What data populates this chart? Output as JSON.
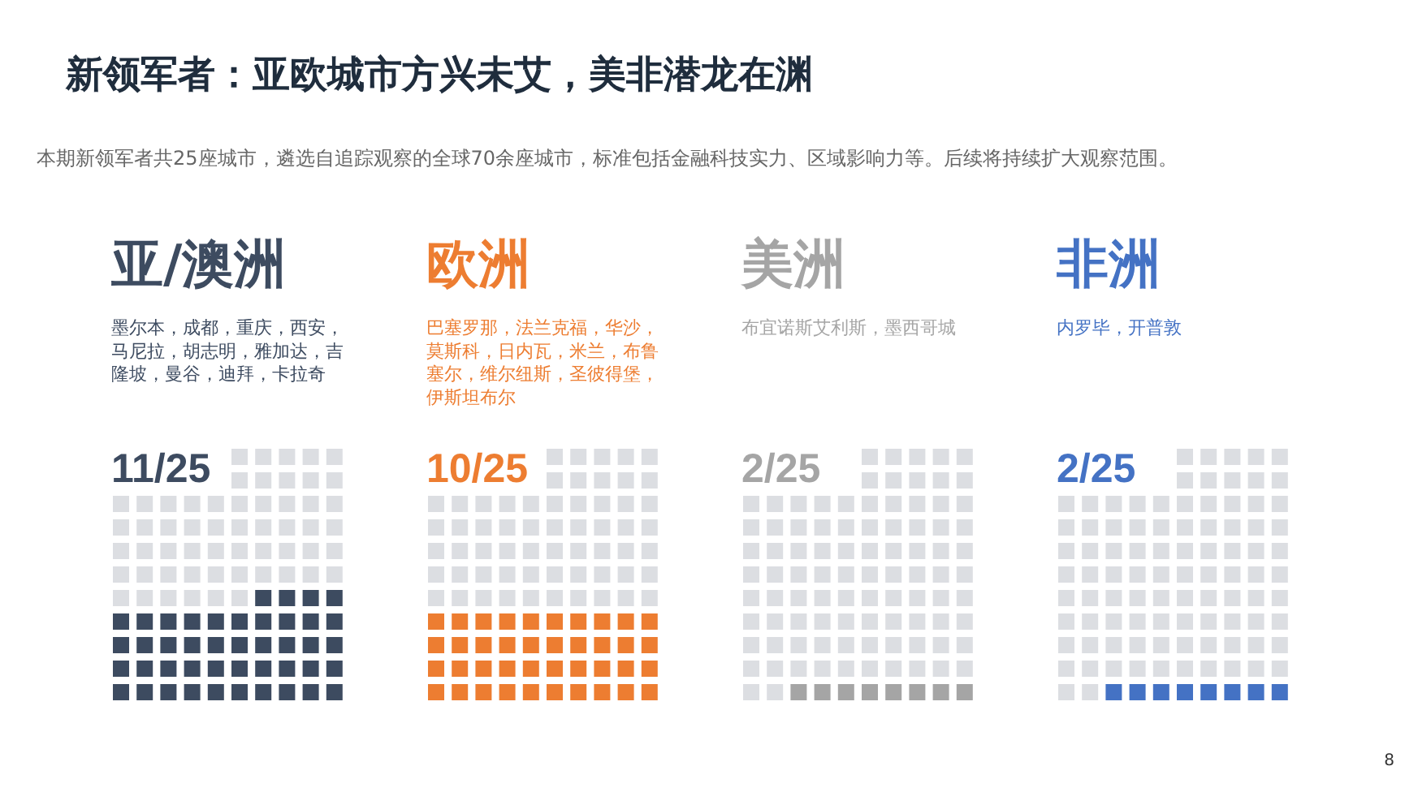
{
  "chart_data": {
    "type": "other",
    "title": "新领军者：亚欧城市方兴未艾，美非潜龙在渊",
    "subtitle": "本期新领军者共25座城市，遴选自追踪观察的全球70余座城市，标准包括金融科技实力、区域影响力等。后续将持续扩大观察范围。",
    "categories": [
      "亚/澳洲",
      "欧洲",
      "美洲",
      "非洲"
    ],
    "values": [
      11,
      10,
      2,
      2
    ],
    "value_labels": [
      "11/25",
      "10/25",
      "2/25",
      "2/25"
    ],
    "colors": [
      "#3d4b60",
      "#ed7d31",
      "#a5a5a5",
      "#4472c4"
    ],
    "annotations": [
      {
        "text": "墨尔本，成都，重庆，西安，马尼拉，胡志明，雅加达，吉隆坡，曼谷，迪拜，卡拉奇",
        "x": "亚/澳洲"
      },
      {
        "text": "巴塞罗那，法兰克福，华沙，莫斯科，日内瓦，米兰，布鲁塞尔，维尔纽斯，圣彼得堡，伊斯坦布尔",
        "x": "欧洲"
      },
      {
        "text": "布宜诺斯艾利斯，墨西哥城",
        "x": "美洲"
      },
      {
        "text": "内罗毕，开普敦",
        "x": "非洲"
      },
      "8"
    ]
  }
}
